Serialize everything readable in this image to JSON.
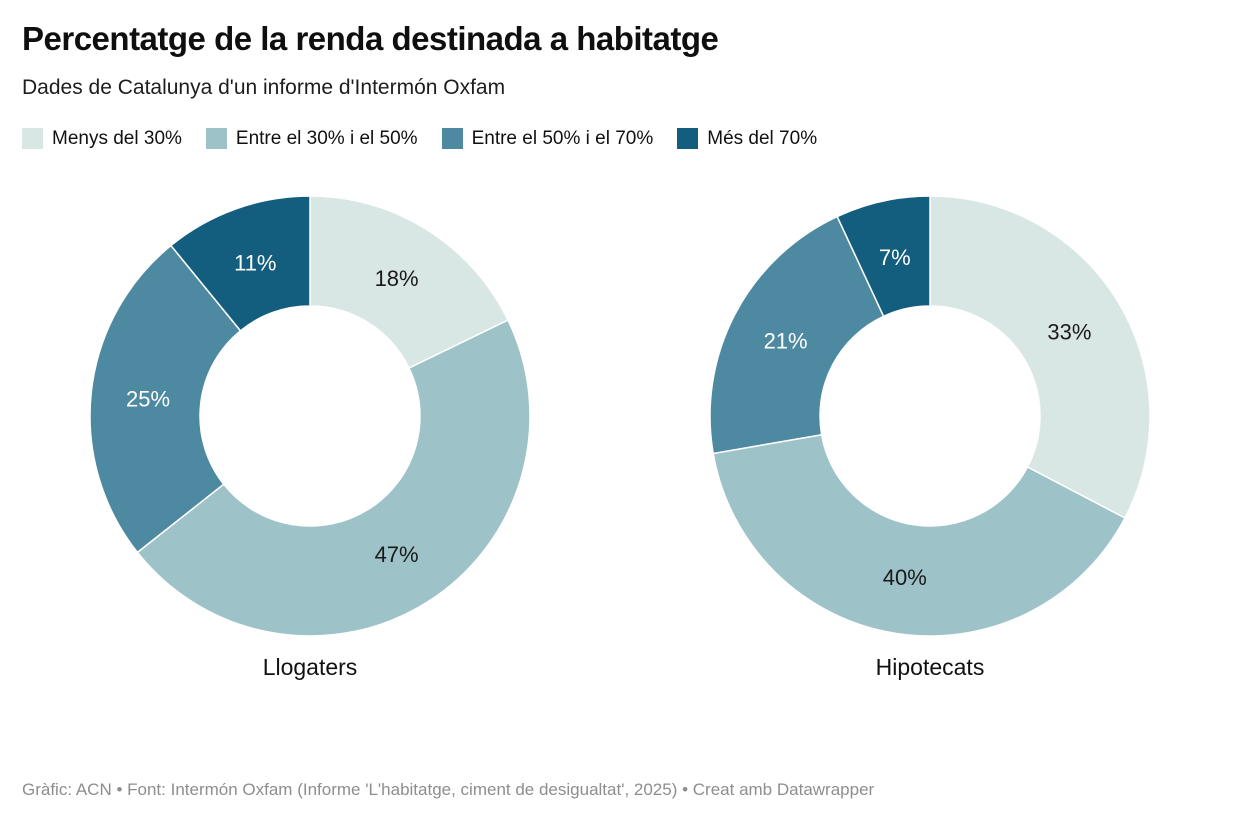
{
  "header": {
    "title": "Percentatge de la renda destinada a habitatge",
    "subtitle": "Dades de Catalunya d'un informe d'Intermón Oxfam"
  },
  "legend": [
    {
      "label": "Menys del 30%",
      "color": "#d8e7e4"
    },
    {
      "label": "Entre el 30% i el 50%",
      "color": "#9dc2c7"
    },
    {
      "label": "Entre el 50% i el 70%",
      "color": "#4d89a0"
    },
    {
      "label": "Més del 70%",
      "color": "#135e7e"
    }
  ],
  "chart_data": {
    "type": "pie",
    "subtype": "donut",
    "categories": [
      "Menys del 30%",
      "Entre el 30% i el 50%",
      "Entre el 50% i el 70%",
      "Més del 70%"
    ],
    "colors": [
      "#d8e7e4",
      "#9dc2c7",
      "#4d89a0",
      "#135e7e"
    ],
    "value_suffix": "%",
    "label_color_light": "#1a1a1a",
    "label_color_dark": "#ffffff",
    "legend_position": "top",
    "charts": [
      {
        "title": "Llogaters",
        "values": [
          18,
          47,
          25,
          11
        ]
      },
      {
        "title": "Hipotecats",
        "values": [
          33,
          40,
          21,
          7
        ]
      }
    ]
  },
  "footer": {
    "text": "Gràfic: ACN • Font: Intermón Oxfam (Informe 'L'habitatge, ciment de desigualtat', 2025) • Creat amb Datawrapper"
  }
}
